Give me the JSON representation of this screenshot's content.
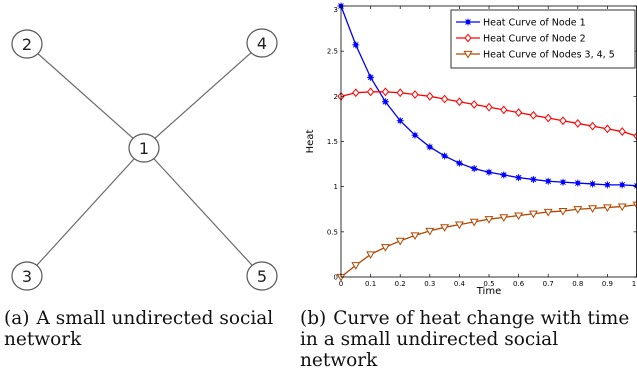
{
  "graph": {
    "nodes": [
      {
        "label": "1"
      },
      {
        "label": "2"
      },
      {
        "label": "3"
      },
      {
        "label": "4"
      },
      {
        "label": "5"
      }
    ],
    "edges": [
      [
        "1",
        "2"
      ],
      [
        "1",
        "3"
      ],
      [
        "1",
        "4"
      ],
      [
        "1",
        "5"
      ]
    ]
  },
  "captions": {
    "a": {
      "label": "(a)",
      "text": "A small undirected social network"
    },
    "b": {
      "label": "(b)",
      "text": "Curve of heat change with time in a small undirected social network"
    }
  },
  "chart_data": {
    "type": "line",
    "xlabel": "Time",
    "ylabel": "Heat",
    "xlim": [
      0,
      1
    ],
    "ylim": [
      0,
      3
    ],
    "xticks": [
      "0",
      "0.1",
      "0.2",
      "0.3",
      "0.4",
      "0.5",
      "0.6",
      "0.7",
      "0.8",
      "0.9",
      "1"
    ],
    "yticks": [
      "0",
      "0.5",
      "1",
      "1.5",
      "2",
      "2.5",
      "3"
    ],
    "grid": false,
    "legend_position": "top-right",
    "x": [
      0,
      0.05,
      0.1,
      0.15,
      0.2,
      0.25,
      0.3,
      0.35,
      0.4,
      0.45,
      0.5,
      0.55,
      0.6,
      0.65,
      0.7,
      0.75,
      0.8,
      0.85,
      0.9,
      0.95,
      1.0
    ],
    "series": [
      {
        "name": "Heat Curve of Node 1",
        "color": "#0000ff",
        "marker": "star",
        "values": [
          3.0,
          2.57,
          2.21,
          1.94,
          1.73,
          1.57,
          1.44,
          1.34,
          1.26,
          1.2,
          1.16,
          1.13,
          1.1,
          1.08,
          1.06,
          1.05,
          1.04,
          1.03,
          1.02,
          1.02,
          1.01
        ]
      },
      {
        "name": "Heat Curve of Node 2",
        "color": "#ff0000",
        "marker": "diamond",
        "values": [
          2.0,
          2.04,
          2.05,
          2.05,
          2.04,
          2.02,
          2.0,
          1.97,
          1.94,
          1.91,
          1.88,
          1.85,
          1.82,
          1.79,
          1.76,
          1.73,
          1.7,
          1.67,
          1.64,
          1.61,
          1.56
        ]
      },
      {
        "name": "Heat Curve of Nodes 3, 4, 5",
        "color": "#b34700",
        "marker": "triangle-down",
        "values": [
          0.0,
          0.13,
          0.25,
          0.33,
          0.4,
          0.46,
          0.51,
          0.55,
          0.58,
          0.61,
          0.64,
          0.66,
          0.68,
          0.7,
          0.72,
          0.73,
          0.75,
          0.76,
          0.77,
          0.78,
          0.8
        ]
      }
    ]
  }
}
